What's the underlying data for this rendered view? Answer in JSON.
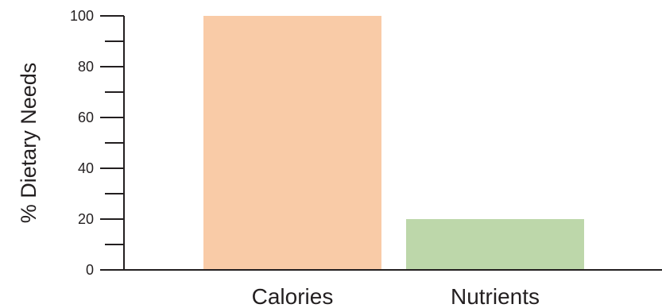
{
  "chart_data": {
    "type": "bar",
    "categories": [
      "Calories",
      "Nutrients"
    ],
    "values": [
      100,
      20
    ],
    "colors": [
      "#f9cba7",
      "#bdd7aa"
    ],
    "ylabel": "% Dietary Needs",
    "xlabel": "",
    "ylim": [
      0,
      100
    ],
    "yticks": [
      0,
      20,
      40,
      60,
      80,
      100
    ],
    "minor_ticks": [
      10,
      30,
      50,
      70,
      90
    ],
    "grid": false,
    "legend": "none"
  }
}
